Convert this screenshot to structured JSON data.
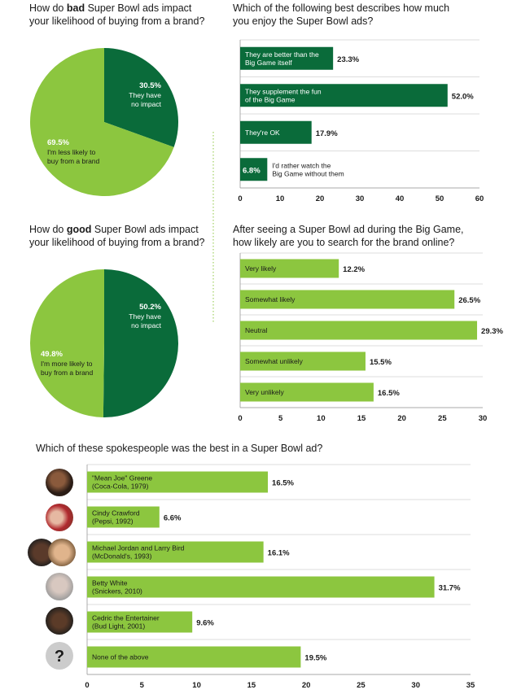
{
  "colors": {
    "dark_green": "#0a6b3a",
    "light_green": "#8cc63f",
    "gray": "#dddddd"
  },
  "chart_data": [
    {
      "type": "pie",
      "title_parts": [
        "How do ",
        "bad",
        " Super Bowl ads impact",
        "your likelihood of buying from a brand?"
      ],
      "slices": [
        {
          "value": 30.5,
          "label_value": "30.5%",
          "label_lines": [
            "They have",
            "no impact"
          ],
          "color": "dark"
        },
        {
          "value": 69.5,
          "label_value": "69.5%",
          "label_lines": [
            "I'm less likely to",
            "buy from a brand"
          ],
          "color": "light"
        }
      ]
    },
    {
      "type": "bar",
      "orientation": "horizontal",
      "title_lines": [
        "Which of the following best describes how much",
        "you enjoy the Super Bowl ads?"
      ],
      "categories": [
        [
          "They are better than the",
          "Big Game itself"
        ],
        [
          "They supplement the fun",
          "of the Big Game"
        ],
        [
          "They're OK"
        ],
        [
          "I'd rather watch the",
          "Big Game without them"
        ]
      ],
      "values": [
        23.3,
        52.0,
        17.9,
        6.8
      ],
      "value_labels": [
        "23.3%",
        "52.0%",
        "17.9%",
        "6.8%"
      ],
      "xlim": [
        0,
        60
      ],
      "xticks": [
        "0",
        "10",
        "20",
        "30",
        "40",
        "50",
        "60"
      ]
    },
    {
      "type": "pie",
      "title_parts": [
        "How do ",
        "good",
        " Super Bowl ads impact",
        "your likelihood of buying from a brand?"
      ],
      "slices": [
        {
          "value": 50.2,
          "label_value": "50.2%",
          "label_lines": [
            "They have",
            "no impact"
          ],
          "color": "dark"
        },
        {
          "value": 49.8,
          "label_value": "49.8%",
          "label_lines": [
            "I'm more likely to",
            "buy from a brand"
          ],
          "color": "light"
        }
      ]
    },
    {
      "type": "bar",
      "orientation": "horizontal",
      "title_lines": [
        "After seeing a Super Bowl ad during the Big Game,",
        "how likely are you to search for the brand online?"
      ],
      "categories": [
        [
          "Very likely"
        ],
        [
          "Somewhat likely"
        ],
        [
          "Neutral"
        ],
        [
          "Somewhat unlikely"
        ],
        [
          "Very unlikely"
        ]
      ],
      "values": [
        12.2,
        26.5,
        29.3,
        15.5,
        16.5
      ],
      "value_labels": [
        "12.2%",
        "26.5%",
        "29.3%",
        "15.5%",
        "16.5%"
      ],
      "xlim": [
        0,
        30
      ],
      "xticks": [
        "0",
        "5",
        "10",
        "15",
        "20",
        "25",
        "30"
      ]
    },
    {
      "type": "bar",
      "orientation": "horizontal",
      "title_lines": [
        "Which of these spokespeople was the best in a Super Bowl ad?"
      ],
      "categories": [
        [
          "\"Mean Joe\" Greene",
          "(Coca-Cola, 1979)"
        ],
        [
          "Cindy Crawford",
          "(Pepsi, 1992)"
        ],
        [
          "Michael Jordan and Larry Bird",
          "(McDonald's, 1993)"
        ],
        [
          "Betty White",
          "(Snickers, 2010)"
        ],
        [
          "Cedric the Entertainer",
          "(Bud Light, 2001)"
        ],
        [
          "None of the above"
        ]
      ],
      "values": [
        16.5,
        6.6,
        16.1,
        31.7,
        9.6,
        19.5
      ],
      "value_labels": [
        "16.5%",
        "6.6%",
        "16.1%",
        "31.7%",
        "9.6%",
        "19.5%"
      ],
      "xlim": [
        0,
        35
      ],
      "xticks": [
        "0",
        "5",
        "10",
        "15",
        "20",
        "25",
        "30",
        "35"
      ],
      "unknown_glyph": "?"
    }
  ]
}
